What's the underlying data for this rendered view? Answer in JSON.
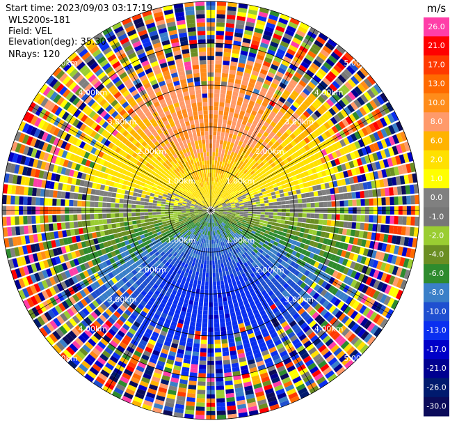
{
  "chart_data": {
    "type": "heatmap",
    "projection": "polar-ppi",
    "header": {
      "start_time": "Start time: 2023/09/03 03:17:19",
      "instrument": "WLS200s-181",
      "field": "Field: VEL",
      "elevation": "Elevation(deg): 35.30",
      "nrays": "NRays: 120"
    },
    "range_ring_labels": [
      "1.00km",
      "2.00km",
      "3.00km",
      "4.00km",
      "5.00km"
    ],
    "range_rings_km": [
      1,
      2,
      3,
      4,
      5
    ],
    "max_range_km": 5.2,
    "nrays": 120,
    "colorbar": {
      "unit": "m/s",
      "ticks": [
        "26.0",
        "21.0",
        "17.0",
        "13.0",
        "10.0",
        "8.0",
        "6.0",
        "2.0",
        "1.0",
        "0.0",
        "-1.0",
        "-2.0",
        "-4.0",
        "-6.0",
        "-8.0",
        "-10.0",
        "-13.0",
        "-17.0",
        "-21.0",
        "-26.0",
        "-30.0"
      ],
      "colors": [
        "#ff3ea8",
        "#ff0000",
        "#ff3a00",
        "#ff6a00",
        "#ff8c1a",
        "#ff9a6a",
        "#ffb300",
        "#ffe000",
        "#ffff00",
        "#808080",
        "#777777",
        "#9acd32",
        "#6b8e23",
        "#2e8b2e",
        "#3a7fc8",
        "#1f4fd0",
        "#0a2ff0",
        "#0000c8",
        "#000090",
        "#001a6e",
        "#0b0b5a"
      ]
    },
    "velocity_pattern": "sinusoidal-azimuth, receding north (positive, warm colors), approaching south (negative, cool colors)"
  }
}
